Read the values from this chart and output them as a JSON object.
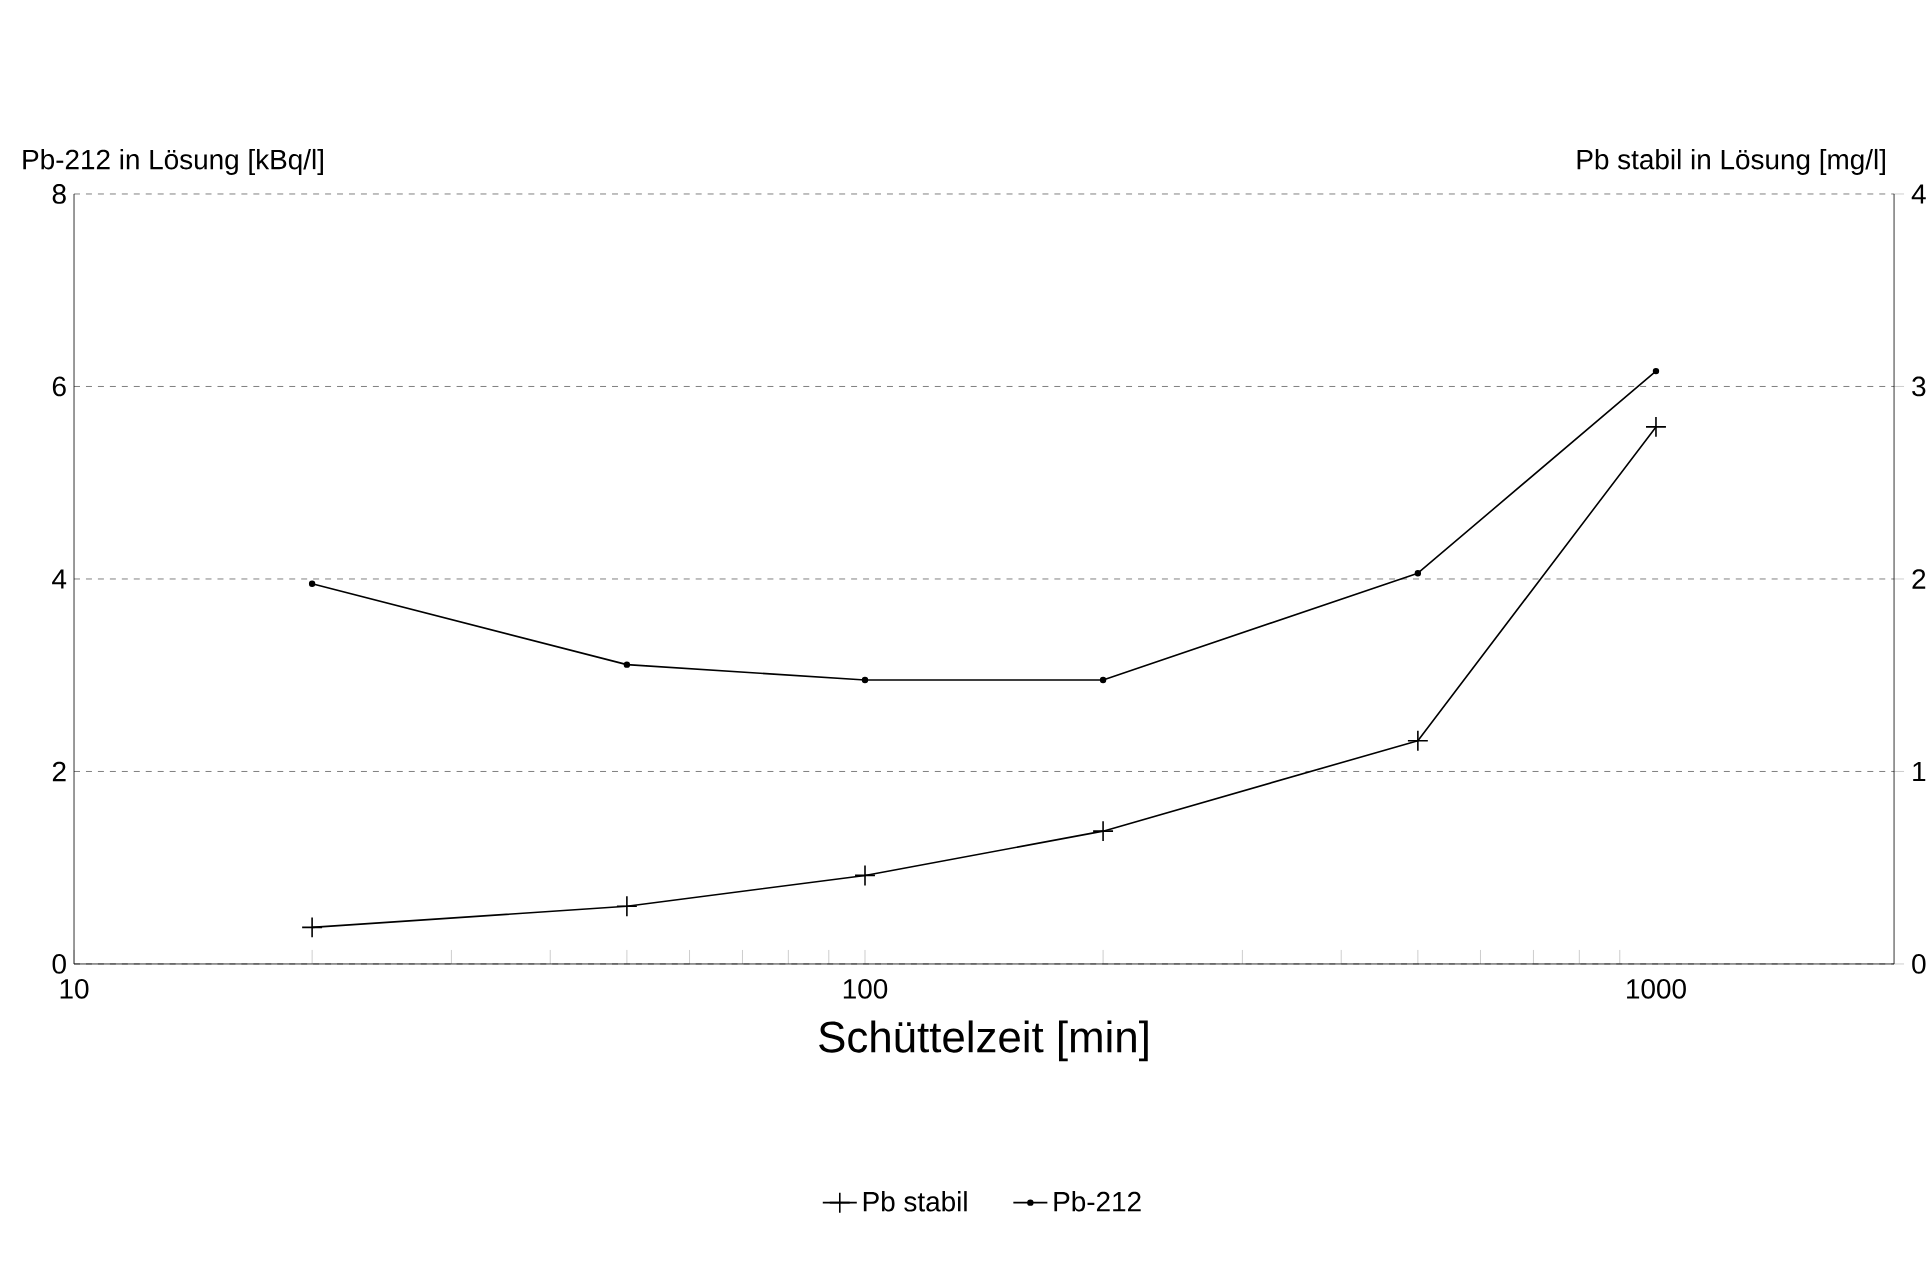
{
  "chart_data": {
    "type": "line",
    "xlabel": "Schüttelzeit [min]",
    "ylabel": "Pb-212 in Lösung [kBq/l]",
    "y2label": "Pb stabil in Lösung [mg/l]",
    "x": [
      20,
      50,
      100,
      200,
      500,
      1000
    ],
    "log": "x",
    "xlim": [
      10,
      2000
    ],
    "xticks": [
      10,
      100,
      1000
    ],
    "ylim": [
      0,
      8
    ],
    "yticks": [
      0,
      2,
      4,
      6,
      8
    ],
    "y2lim": [
      0,
      4
    ],
    "y2ticks": [
      0,
      1,
      2,
      3,
      4
    ],
    "grid": "y",
    "legend": "bottom",
    "series": [
      {
        "name": "Pb stabil",
        "color": "#000000",
        "axis": "y2",
        "marker": "cross",
        "values": [
          0.19,
          0.3,
          0.46,
          0.69,
          1.16,
          2.79
        ]
      },
      {
        "name": "Pb-212",
        "color": "#000000",
        "marker": "circle",
        "values": [
          3.95,
          3.11,
          2.95,
          2.95,
          4.06,
          6.16
        ]
      }
    ]
  }
}
